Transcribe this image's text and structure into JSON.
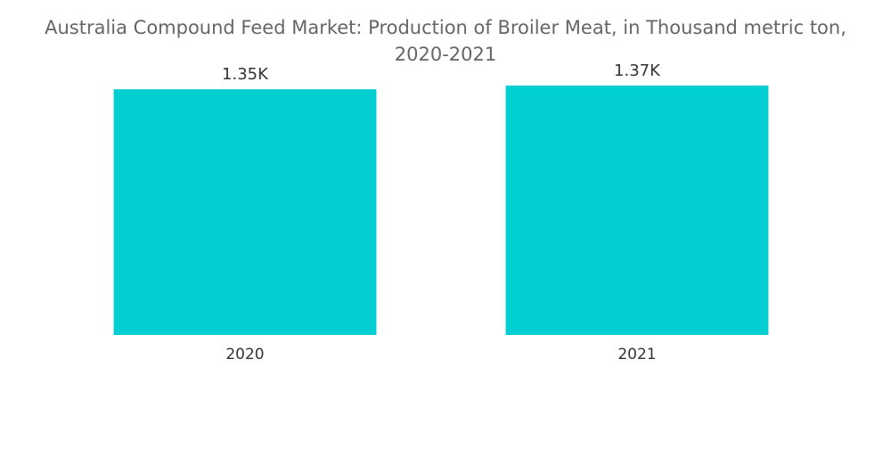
{
  "chart_data": {
    "type": "bar",
    "title_line1": "Australia Compound Feed Market: Production of Broiler Meat, in Thousand metric ton,",
    "title_line2": "2020-2021",
    "categories": [
      "2020",
      "2021"
    ],
    "values": [
      1350,
      1370
    ],
    "data_labels": [
      "1.35K",
      "1.37K"
    ],
    "ylabel": "",
    "xlabel": "",
    "ylim": [
      0,
      1400
    ],
    "grid": false,
    "legend": "none",
    "bar_color": "#00CED1"
  }
}
